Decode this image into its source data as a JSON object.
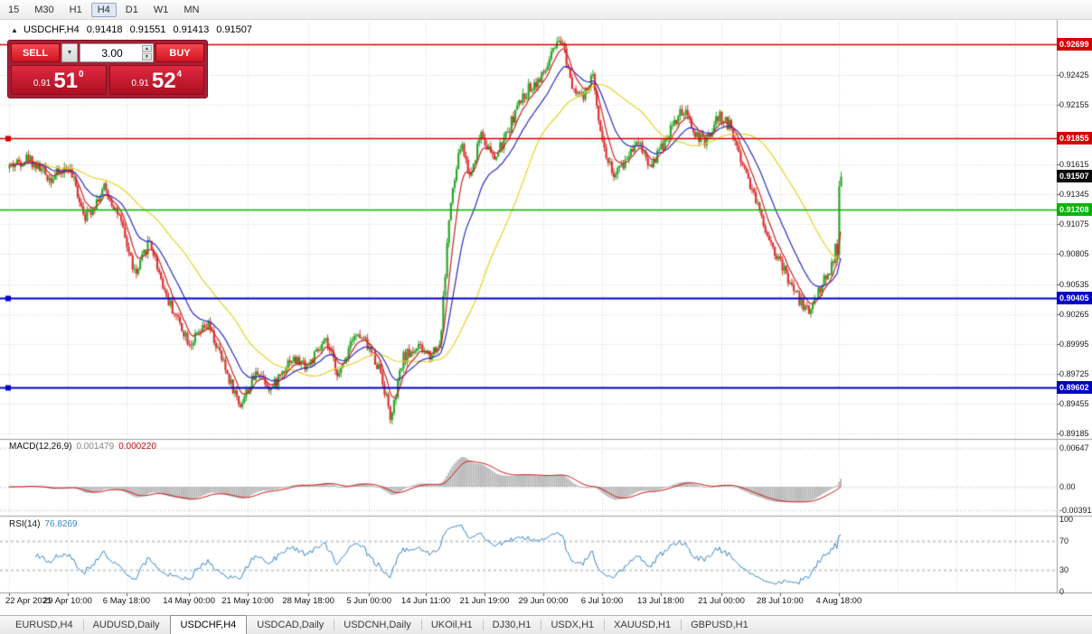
{
  "toolbar": {
    "timeframes": [
      "15",
      "M30",
      "H1",
      "H4",
      "D1",
      "W1",
      "MN"
    ],
    "active": "H4"
  },
  "chart_header": {
    "collapse_icon": "▲",
    "symbol": "USDCHF,H4",
    "open": "0.91418",
    "high": "0.91551",
    "low": "0.91413",
    "close": "0.91507"
  },
  "one_click": {
    "sell_label": "SELL",
    "buy_label": "BUY",
    "volume": "3.00",
    "sell_price": {
      "prefix": "0.91",
      "big": "51",
      "sup": "0"
    },
    "buy_price": {
      "prefix": "0.91",
      "big": "52",
      "sup": "4"
    }
  },
  "indicators": {
    "macd": {
      "title": "MACD(12,26,9)",
      "value1": "0.001479",
      "value2": "0.000220",
      "scale_min": -0.0045,
      "scale_max": 0.0075,
      "axis": [
        {
          "label": "0.00647",
          "value": 0.00647
        },
        {
          "label": "0.00",
          "value": 0
        },
        {
          "label": "-0.00391",
          "value": -0.00391
        }
      ]
    },
    "rsi": {
      "title": "RSI(14)",
      "value": "76.8269",
      "scale_min": 0,
      "scale_max": 100,
      "levels": [
        70,
        30
      ],
      "axis": [
        {
          "label": "100",
          "value": 100
        },
        {
          "label": "70",
          "value": 70
        },
        {
          "label": "30",
          "value": 30
        },
        {
          "label": "0",
          "value": 0
        }
      ]
    }
  },
  "time_axis": {
    "ticks": [
      {
        "label": "22 Apr 2021",
        "bar": 0
      },
      {
        "label": "29 Apr 10:00",
        "bar": 31
      },
      {
        "label": "6 May 18:00",
        "bar": 62
      },
      {
        "label": "14 May 00:00",
        "bar": 95
      },
      {
        "label": "21 May 10:00",
        "bar": 126
      },
      {
        "label": "28 May 18:00",
        "bar": 158
      },
      {
        "label": "5 Jun 00:00",
        "bar": 190
      },
      {
        "label": "14 Jun 11:00",
        "bar": 220
      },
      {
        "label": "21 Jun 19:00",
        "bar": 251
      },
      {
        "label": "29 Jun 00:00",
        "bar": 282
      },
      {
        "label": "6 Jul 10:00",
        "bar": 313
      },
      {
        "label": "13 Jul 18:00",
        "bar": 344
      },
      {
        "label": "21 Jul 00:00",
        "bar": 376
      },
      {
        "label": "28 Jul 10:00",
        "bar": 407
      },
      {
        "label": "4 Aug 18:00",
        "bar": 438
      }
    ]
  },
  "tabs": {
    "items": [
      "EURUSD,H4",
      "AUDUSD,Daily",
      "USDCHF,H4",
      "USDCAD,Daily",
      "USDCNH,Daily",
      "UKOil,H1",
      "DJ30,H1",
      "USDX,H1",
      "XAUUSD,H1",
      "GBPUSD,H1"
    ],
    "active_index": 2
  },
  "chart_data": {
    "type": "candlestick",
    "symbol": "USDCHF",
    "timeframe": "H4",
    "bars": 440,
    "seed": 42,
    "noise": 0.00055,
    "wick": 0.00045,
    "y_axis": {
      "min": 0.89135,
      "max": 0.9276,
      "ticks": [
        0.92425,
        0.92155,
        0.91885,
        0.91615,
        0.91345,
        0.91075,
        0.90805,
        0.90535,
        0.90265,
        0.89995,
        0.89725,
        0.89455,
        0.89185
      ]
    },
    "tick_labels": [
      "0.92425",
      "0.92155",
      "0.91615",
      "0.91345",
      "0.91075",
      "0.90805",
      "0.90535",
      "0.90265",
      "0.89995",
      "0.89725",
      "0.89455",
      "0.89185"
    ],
    "price_path": [
      [
        0,
        0.916
      ],
      [
        0.022,
        0.9168
      ],
      [
        0.049,
        0.9149
      ],
      [
        0.071,
        0.9159
      ],
      [
        0.092,
        0.9114
      ],
      [
        0.114,
        0.914
      ],
      [
        0.13,
        0.9118
      ],
      [
        0.152,
        0.906
      ],
      [
        0.168,
        0.9094
      ],
      [
        0.19,
        0.904
      ],
      [
        0.217,
        0.9
      ],
      [
        0.239,
        0.9016
      ],
      [
        0.261,
        0.8974
      ],
      [
        0.277,
        0.8944
      ],
      [
        0.299,
        0.8976
      ],
      [
        0.315,
        0.8958
      ],
      [
        0.337,
        0.8986
      ],
      [
        0.359,
        0.898
      ],
      [
        0.38,
        0.9001
      ],
      [
        0.397,
        0.897
      ],
      [
        0.413,
        0.901
      ],
      [
        0.429,
        0.9
      ],
      [
        0.446,
        0.8976
      ],
      [
        0.459,
        0.893
      ],
      [
        0.473,
        0.8986
      ],
      [
        0.489,
        0.8996
      ],
      [
        0.505,
        0.899
      ],
      [
        0.518,
        0.9
      ],
      [
        0.529,
        0.9118
      ],
      [
        0.543,
        0.9182
      ],
      [
        0.554,
        0.915
      ],
      [
        0.567,
        0.9192
      ],
      [
        0.582,
        0.9165
      ],
      [
        0.596,
        0.9185
      ],
      [
        0.609,
        0.9211
      ],
      [
        0.625,
        0.9231
      ],
      [
        0.641,
        0.9241
      ],
      [
        0.654,
        0.9264
      ],
      [
        0.665,
        0.9272
      ],
      [
        0.676,
        0.9236
      ],
      [
        0.69,
        0.922
      ],
      [
        0.701,
        0.9242
      ],
      [
        0.715,
        0.9175
      ],
      [
        0.728,
        0.915
      ],
      [
        0.741,
        0.9166
      ],
      [
        0.755,
        0.9186
      ],
      [
        0.77,
        0.916
      ],
      [
        0.783,
        0.9176
      ],
      [
        0.796,
        0.9196
      ],
      [
        0.81,
        0.921
      ],
      [
        0.824,
        0.919
      ],
      [
        0.837,
        0.918
      ],
      [
        0.853,
        0.9206
      ],
      [
        0.867,
        0.9196
      ],
      [
        0.88,
        0.9166
      ],
      [
        0.893,
        0.914
      ],
      [
        0.908,
        0.9106
      ],
      [
        0.922,
        0.908
      ],
      [
        0.935,
        0.906
      ],
      [
        0.948,
        0.9041
      ],
      [
        0.962,
        0.9028
      ],
      [
        0.973,
        0.9048
      ],
      [
        0.984,
        0.9062
      ],
      [
        0.991,
        0.9076
      ],
      [
        1,
        0.9151
      ]
    ],
    "last_bar": {
      "open": 0.91418,
      "high": 0.91551,
      "low": 0.91413,
      "close": 0.91507
    },
    "moving_averages": [
      {
        "type": "sma",
        "period": 50,
        "color": "#e8d22a"
      },
      {
        "type": "ema",
        "period": 21,
        "color": "#2b2bc4"
      },
      {
        "type": "ema",
        "period": 8,
        "color": "#cf2424"
      }
    ],
    "hlines": [
      {
        "value": 0.92699,
        "label": "0.92699",
        "color": "#d40000",
        "width": 1.5,
        "anchor": false
      },
      {
        "value": 0.91855,
        "label": "0.91855",
        "color": "#d40000",
        "width": 1.5,
        "anchor": true
      },
      {
        "value": 0.91208,
        "label": "0.91208",
        "color": "#00b400",
        "width": 1.5,
        "anchor": false
      },
      {
        "value": 0.90405,
        "label": "0.90405",
        "color": "#0000c8",
        "width": 2,
        "anchor": true
      },
      {
        "value": 0.89602,
        "label": "0.89602",
        "color": "#0000c8",
        "width": 2,
        "anchor": true
      }
    ],
    "current_price": {
      "value": 0.91507,
      "label": "0.91507"
    },
    "colors": {
      "up": "#2aa82a",
      "down": "#de3232",
      "macd_hist": "#b6b6b6",
      "macd_signal": "#cc1414",
      "rsi": "#3a87c8",
      "grid": "#d6d6d6"
    }
  }
}
